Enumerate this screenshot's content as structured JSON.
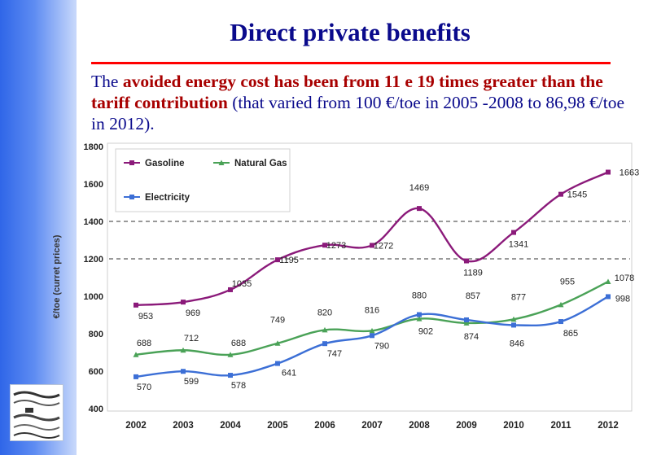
{
  "page": {
    "title": "Direct private benefits",
    "subtitle_part1": "The ",
    "subtitle_highlight1": "avoided energy cost has been from 11 e 19 times greater than the tariff contribution",
    "subtitle_part2": " (that varied from 100 €/toe in 2005 -2008 to 86,98 €/toe in 2012)."
  },
  "colors": {
    "title": "#0a0a8c",
    "rule": "#ff0000",
    "gasoline": "#8b1a7a",
    "natural_gas": "#4aa257",
    "electricity": "#3c6fd6"
  },
  "chart_data": {
    "type": "line",
    "title": "",
    "xlabel": "",
    "ylabel": "€/toe (curret prices)",
    "ylim": [
      400,
      1800
    ],
    "yticks": [
      400,
      600,
      800,
      1000,
      1200,
      1400,
      1600,
      1800
    ],
    "reference_lines": [
      1400,
      1200
    ],
    "categories": [
      "2002",
      "2003",
      "2004",
      "2005",
      "2006",
      "2007",
      "2008",
      "2009",
      "2010",
      "2011",
      "2012"
    ],
    "legend_position": "top-left",
    "series": [
      {
        "name": "Gasoline",
        "color": "#8b1a7a",
        "marker": "square",
        "values": [
          953,
          969,
          1035,
          1195,
          1273,
          1272,
          1469,
          1189,
          1341,
          1545,
          1663
        ],
        "labels": [
          "953",
          "969",
          "1035",
          "1195",
          "1273",
          "1272",
          "1469",
          "1189",
          "1341",
          "1545",
          "1663"
        ]
      },
      {
        "name": "Natural Gas",
        "color": "#4aa257",
        "marker": "triangle",
        "values": [
          688,
          712,
          688,
          749,
          820,
          816,
          880,
          857,
          877,
          955,
          1078
        ],
        "labels": [
          "688",
          "712",
          "688",
          "749",
          "820",
          "816",
          "880",
          "857",
          "877",
          "955",
          "1078"
        ]
      },
      {
        "name": "Electricity",
        "color": "#3c6fd6",
        "marker": "square",
        "values": [
          570,
          599,
          578,
          641,
          747,
          790,
          902,
          874,
          846,
          865,
          998
        ],
        "labels": [
          "570",
          "599",
          "578",
          "641",
          "747",
          "790",
          "902",
          "874",
          "846",
          "865",
          "998"
        ]
      }
    ]
  }
}
